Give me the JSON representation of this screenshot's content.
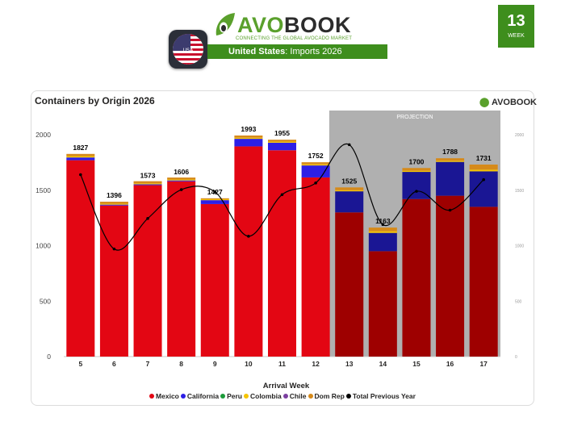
{
  "header": {
    "logo_text_first": "AVO",
    "logo_text_rest": "BOOK",
    "tagline": "CONNECTING THE GLOBAL AVOCADO MARKET",
    "country": "United States",
    "subtitle": ": Imports 2026",
    "flag_caption": "USA",
    "week_number": "13",
    "week_label": "WEEK"
  },
  "brand_colors": {
    "green": "#3e8e1d",
    "leaf": "#5aa02c"
  },
  "chart_data": {
    "type": "bar",
    "stacked": true,
    "title": "Containers by Origin 2026",
    "brand_mark": "AVOBOOK",
    "xlabel": "Arrival Week",
    "ylabel": "",
    "categories": [
      "5",
      "6",
      "7",
      "8",
      "9",
      "10",
      "11",
      "12",
      "13",
      "14",
      "15",
      "16",
      "17"
    ],
    "ylim": [
      0,
      2000
    ],
    "yticks": [
      0,
      500,
      1000,
      1500,
      2000
    ],
    "yticks_right": [
      0,
      500,
      1000,
      1500,
      2000
    ],
    "projection_label": "PROJECTION",
    "projection_start_category": "13",
    "totals": [
      1827,
      1396,
      1573,
      1606,
      1427,
      1993,
      1955,
      1752,
      1525,
      1163,
      1700,
      1788,
      1731
    ],
    "series": [
      {
        "name": "Mexico",
        "color": "#e30613",
        "projection_color": "#9e0000",
        "values": [
          1770,
          1362,
          1545,
          1580,
          1375,
          1895,
          1860,
          1615,
          1300,
          950,
          1420,
          1450,
          1350
        ]
      },
      {
        "name": "California",
        "color": "#2d1fe6",
        "projection_color": "#1a1694",
        "values": [
          25,
          8,
          8,
          8,
          35,
          68,
          68,
          108,
          190,
          165,
          245,
          305,
          320
        ]
      },
      {
        "name": "Peru",
        "color": "#1c9b3a",
        "values": [
          0,
          0,
          0,
          0,
          0,
          0,
          0,
          0,
          0,
          0,
          0,
          0,
          0
        ]
      },
      {
        "name": "Colombia",
        "color": "#f5c400",
        "values": [
          12,
          8,
          8,
          8,
          8,
          10,
          10,
          10,
          10,
          15,
          10,
          10,
          15
        ]
      },
      {
        "name": "Chile",
        "color": "#7b3fa0",
        "values": [
          0,
          0,
          0,
          0,
          0,
          0,
          0,
          0,
          0,
          0,
          0,
          0,
          0
        ]
      },
      {
        "name": "Dom Rep",
        "color": "#d68a1a",
        "values": [
          20,
          18,
          20,
          18,
          9,
          20,
          17,
          19,
          25,
          33,
          25,
          23,
          46
        ]
      }
    ],
    "line_series": {
      "name": "Total Previous Year",
      "color": "#000000",
      "values": [
        1640,
        970,
        1245,
        1505,
        1485,
        1085,
        1460,
        1565,
        1910,
        1190,
        1490,
        1320,
        1595
      ]
    },
    "legend": [
      "Mexico",
      "California",
      "Peru",
      "Colombia",
      "Chile",
      "Dom Rep",
      "Total Previous Year"
    ],
    "legend_position": "bottom",
    "grid": false
  }
}
